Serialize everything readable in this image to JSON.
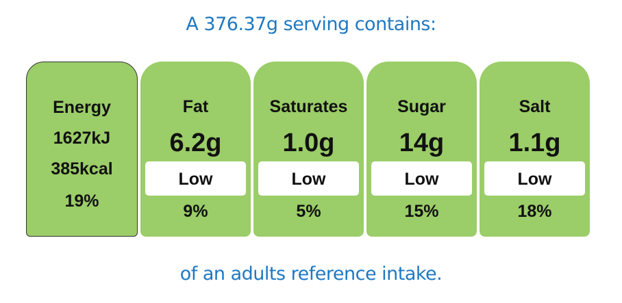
{
  "header": {
    "title": "A 376.37g serving contains:"
  },
  "energy": {
    "label": "Energy",
    "kj": "1627kJ",
    "kcal": "385kcal",
    "percent": "19%"
  },
  "nutrients": [
    {
      "name": "Fat",
      "amount": "6.2g",
      "level": "Low",
      "percent": "9%"
    },
    {
      "name": "Saturates",
      "amount": "1.0g",
      "level": "Low",
      "percent": "5%"
    },
    {
      "name": "Sugar",
      "amount": "14g",
      "level": "Low",
      "percent": "15%"
    },
    {
      "name": "Salt",
      "amount": "1.1g",
      "level": "Low",
      "percent": "18%"
    }
  ],
  "footer": {
    "text": "of an adults reference intake."
  }
}
